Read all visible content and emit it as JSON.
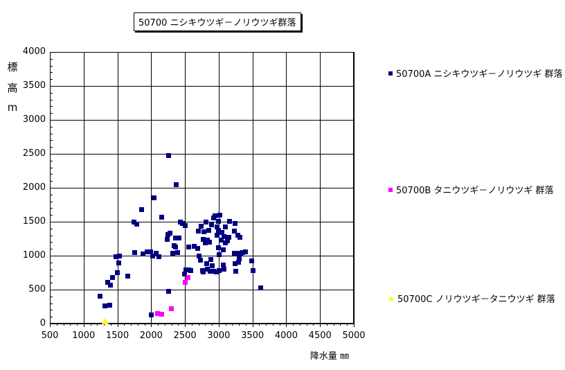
{
  "chart_data": {
    "type": "scatter",
    "title": "50700 ニシキウツギ－ノリウツギ群落",
    "xlabel": "降水量 ㎜",
    "ylabel": "標高 m",
    "xlim": [
      500,
      5000
    ],
    "ylim": [
      0,
      4000
    ],
    "x_tick_labels": [
      "500",
      "1000",
      "1500",
      "2000",
      "2500",
      "3000",
      "3500",
      "4000",
      "4500",
      "5000"
    ],
    "y_tick_labels": [
      "0",
      "500",
      "1000",
      "1500",
      "2000",
      "2500",
      "3000",
      "3500",
      "4000"
    ],
    "x_tick_values": [
      500,
      1000,
      1500,
      2000,
      2500,
      3000,
      3500,
      4000,
      4500,
      5000
    ],
    "y_tick_values": [
      0,
      500,
      1000,
      1500,
      2000,
      2500,
      3000,
      3500,
      4000
    ],
    "minor_tick_step": 100,
    "grid": true,
    "legend_position": "right",
    "colors": {
      "series_a": "#000080",
      "series_b": "#FF00FF",
      "series_c": "#FFFF00",
      "grid": "#000000",
      "text": "#000000",
      "background": "#FFFFFF"
    },
    "series": [
      {
        "name": "50700A ニシキウツギ－ノリウツギ 群落",
        "marker": "square",
        "color": "#000080",
        "points": [
          [
            1240,
            410
          ],
          [
            1310,
            270
          ],
          [
            1350,
            610
          ],
          [
            1380,
            275
          ],
          [
            1390,
            570
          ],
          [
            1420,
            680
          ],
          [
            1470,
            990
          ],
          [
            1490,
            760
          ],
          [
            1510,
            900
          ],
          [
            1530,
            1000
          ],
          [
            1650,
            700
          ],
          [
            1740,
            1500
          ],
          [
            1750,
            1050
          ],
          [
            1780,
            1470
          ],
          [
            1850,
            1680
          ],
          [
            1870,
            1030
          ],
          [
            1930,
            1060
          ],
          [
            1990,
            1060
          ],
          [
            2000,
            135
          ],
          [
            2020,
            1000
          ],
          [
            2040,
            1860
          ],
          [
            2070,
            1040
          ],
          [
            2110,
            990
          ],
          [
            2150,
            1570
          ],
          [
            2230,
            1240
          ],
          [
            2240,
            1320
          ],
          [
            2250,
            480
          ],
          [
            2250,
            2480
          ],
          [
            2270,
            1340
          ],
          [
            2310,
            1040
          ],
          [
            2330,
            1150
          ],
          [
            2360,
            1130
          ],
          [
            2360,
            1270
          ],
          [
            2370,
            2050
          ],
          [
            2390,
            1050
          ],
          [
            2410,
            1270
          ],
          [
            2430,
            1500
          ],
          [
            2460,
            1480
          ],
          [
            2490,
            730
          ],
          [
            2500,
            1450
          ],
          [
            2510,
            800
          ],
          [
            2550,
            800
          ],
          [
            2550,
            1130
          ],
          [
            2580,
            790
          ],
          [
            2630,
            1140
          ],
          [
            2680,
            1110
          ],
          [
            2690,
            1370
          ],
          [
            2700,
            1000
          ],
          [
            2720,
            940
          ],
          [
            2730,
            1440
          ],
          [
            2750,
            790
          ],
          [
            2770,
            770
          ],
          [
            2770,
            1240
          ],
          [
            2780,
            1360
          ],
          [
            2800,
            1190
          ],
          [
            2810,
            1500
          ],
          [
            2820,
            890
          ],
          [
            2830,
            810
          ],
          [
            2830,
            1230
          ],
          [
            2850,
            1380
          ],
          [
            2860,
            1200
          ],
          [
            2870,
            780
          ],
          [
            2880,
            950
          ],
          [
            2890,
            1460
          ],
          [
            2900,
            860
          ],
          [
            2920,
            780
          ],
          [
            2920,
            1560
          ],
          [
            2940,
            1590
          ],
          [
            2960,
            770
          ],
          [
            2970,
            1310
          ],
          [
            2970,
            1430
          ],
          [
            2990,
            1120
          ],
          [
            2990,
            1380
          ],
          [
            2990,
            1510
          ],
          [
            3000,
            790
          ],
          [
            3000,
            1020
          ],
          [
            3010,
            1600
          ],
          [
            3030,
            1230
          ],
          [
            3040,
            1350
          ],
          [
            3060,
            870
          ],
          [
            3060,
            1090
          ],
          [
            3070,
            810
          ],
          [
            3070,
            1290
          ],
          [
            3090,
            1190
          ],
          [
            3090,
            1430
          ],
          [
            3120,
            1220
          ],
          [
            3140,
            1280
          ],
          [
            3160,
            1510
          ],
          [
            3230,
            1040
          ],
          [
            3230,
            1370
          ],
          [
            3240,
            890
          ],
          [
            3240,
            1480
          ],
          [
            3250,
            780
          ],
          [
            3280,
            1040
          ],
          [
            3280,
            1310
          ],
          [
            3290,
            910
          ],
          [
            3300,
            960
          ],
          [
            3310,
            1280
          ],
          [
            3320,
            1030
          ],
          [
            3350,
            1050
          ],
          [
            3390,
            1060
          ],
          [
            3480,
            930
          ],
          [
            3500,
            790
          ],
          [
            3620,
            530
          ]
        ]
      },
      {
        "name": "50700B タニウツギ－ノリウツギ 群落",
        "marker": "square",
        "color": "#FF00FF",
        "points": [
          [
            2090,
            150
          ],
          [
            2150,
            145
          ],
          [
            2290,
            220
          ],
          [
            2500,
            610
          ],
          [
            2540,
            680
          ]
        ]
      },
      {
        "name": "50700C ノリウツギ－タニウツギ 群落",
        "marker": "triangle",
        "color": "#FFFF00",
        "points": [
          [
            1320,
            30
          ]
        ]
      }
    ]
  }
}
